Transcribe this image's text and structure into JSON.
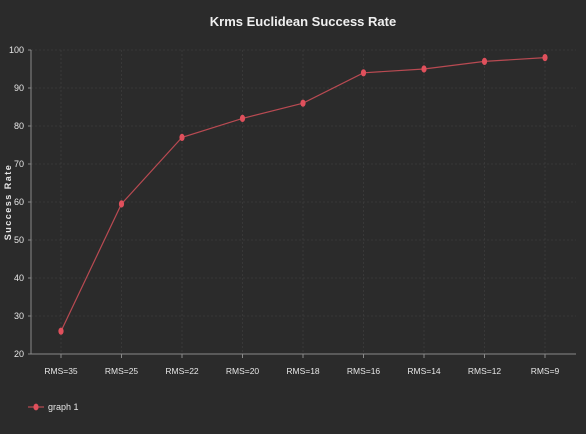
{
  "chart_data": {
    "type": "line",
    "title": "Krms Euclidean Success Rate",
    "xlabel": "",
    "ylabel": "Success Rate",
    "categories": [
      "RMS=35",
      "RMS=25",
      "RMS=22",
      "RMS=20",
      "RMS=18",
      "RMS=16",
      "RMS=14",
      "RMS=12",
      "RMS=9"
    ],
    "series": [
      {
        "name": "graph 1",
        "values": [
          26,
          59.5,
          77,
          82,
          86,
          94,
          95,
          97,
          98
        ]
      }
    ],
    "ylim": [
      20,
      100
    ],
    "yticks": [
      20,
      30,
      40,
      50,
      60,
      70,
      80,
      90,
      100
    ],
    "grid": true,
    "legend": "bottom-left"
  },
  "colors": {
    "background": "#2b2b2b",
    "series": "#e0505c",
    "line": "#b94a52",
    "grid": "#3d3d3d",
    "axis": "#8a8a8a",
    "text": "#e6e6e6"
  }
}
